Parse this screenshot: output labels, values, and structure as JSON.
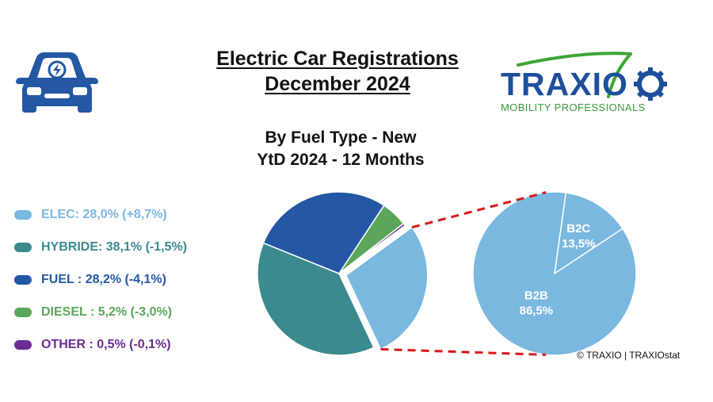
{
  "header": {
    "title_line1": "Electric Car Registrations",
    "title_line2": "December 2024",
    "subtitle_line1": "By Fuel Type - New",
    "subtitle_line2": "YtD 2024 - 12 Months"
  },
  "logo": {
    "word": "TRAXIO",
    "tagline": "MOBILITY PROFESSIONALS",
    "colors": {
      "word": "#1e4f9c",
      "swoosh": "#3fa535"
    }
  },
  "icons": {
    "car": "electric-car-icon"
  },
  "legend": [
    {
      "label": "ELEC: 28,0% (+8,7%)",
      "color": "#7ab8e0"
    },
    {
      "label": "HYBRIDE: 38,1% (-1,5%)",
      "color": "#3a8a8e"
    },
    {
      "label": "FUEL : 28,2% (-4,1%)",
      "color": "#2457a4"
    },
    {
      "label": "DIESEL : 5,2% (-3,0%)",
      "color": "#5ba65a"
    },
    {
      "label": "OTHER : 0,5% (-0,1%)",
      "color": "#6b2c91"
    }
  ],
  "chart_data": [
    {
      "type": "pie",
      "exploded": "ELEC",
      "slices": [
        {
          "name": "ELEC",
          "value": 28.0,
          "change": 8.7,
          "color": "#7ab8e0"
        },
        {
          "name": "HYBRIDE",
          "value": 38.1,
          "change": -1.5,
          "color": "#3a8a8e"
        },
        {
          "name": "FUEL",
          "value": 28.2,
          "change": -4.1,
          "color": "#2457a4"
        },
        {
          "name": "DIESEL",
          "value": 5.2,
          "change": -3.0,
          "color": "#5ba65a"
        },
        {
          "name": "OTHER",
          "value": 0.5,
          "change": -0.1,
          "color": "#6b2c91"
        }
      ]
    },
    {
      "type": "pie",
      "breakdown_of": "ELEC",
      "slices": [
        {
          "name": "B2C",
          "value": 13.5,
          "label": "B2C",
          "value_label": "13,5%"
        },
        {
          "name": "B2B",
          "value": 86.5,
          "label": "B2B",
          "value_label": "86,5%"
        }
      ],
      "color": "#7ab8e0",
      "divider_color": "#ffffff",
      "connector_color": "#d7191c"
    }
  ],
  "footer": {
    "copyright": "© TRAXIO | TRAXIOstat"
  }
}
